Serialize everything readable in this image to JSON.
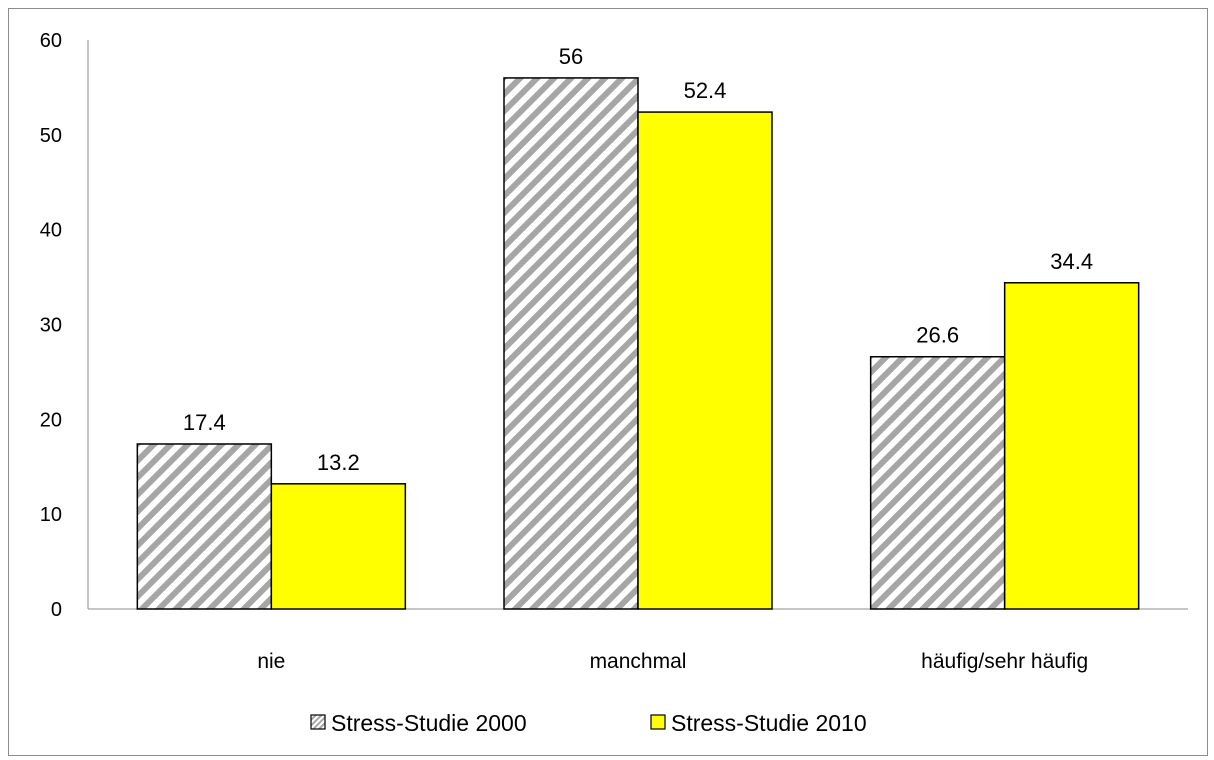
{
  "chart_data": {
    "type": "bar",
    "title": "",
    "xlabel": "",
    "ylabel": "",
    "categories": [
      "nie",
      "manchmal",
      "häufig/sehr häufig"
    ],
    "series": [
      {
        "name": "Stress-Studie 2000",
        "values": [
          17.4,
          56,
          26.6
        ],
        "data_labels": [
          "17.4",
          "56",
          "26.6"
        ],
        "fill": "hatched",
        "color": "#a6a6a6",
        "border_color": "#000000"
      },
      {
        "name": "Stress-Studie 2010",
        "values": [
          13.2,
          52.4,
          34.4
        ],
        "data_labels": [
          "13.2",
          "52.4",
          "34.4"
        ],
        "fill": "solid",
        "color": "#ffff00",
        "border_color": "#000000"
      }
    ],
    "ylim": [
      0,
      60
    ],
    "y_ticks": [
      "0",
      "10",
      "20",
      "30",
      "40",
      "50",
      "60"
    ],
    "grid": false,
    "legend_position": "bottom"
  }
}
